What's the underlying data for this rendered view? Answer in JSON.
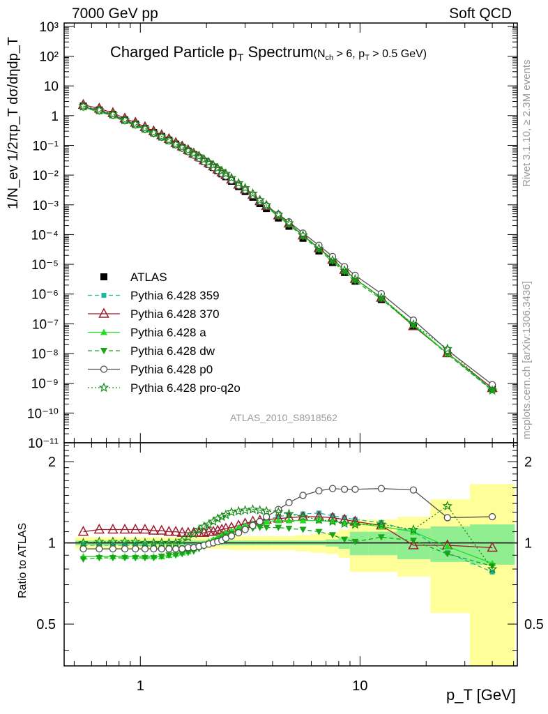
{
  "header": {
    "left": "7000 GeV pp",
    "right": "Soft QCD"
  },
  "title": {
    "main": "Charged Particle p",
    "main_sub": "T",
    "main_tail": " Spectrum",
    "cut": "(N",
    "cut_sub": "ch",
    "cut_mid": " > 6, p",
    "cut_sub2": "T",
    "cut_tail": " > 0.5 GeV)"
  },
  "analysis_label": "ATLAS_2010_S8918562",
  "side_labels": {
    "rivet": "Rivet 3.1.10, ≥ 2.3M events",
    "mcplots": "mcplots.cern.ch [arXiv:1306.3436]"
  },
  "axes": {
    "ylabel": "1/N_ev 1/2πp_T dσ/dηdp_T",
    "ratio_ylabel": "Ratio to ATLAS",
    "xlabel": "p_T  [GeV]",
    "x_ticks": [
      "1",
      "10"
    ],
    "y_ticks": [
      "10⁻¹¹",
      "10⁻¹⁰",
      "10⁻⁹",
      "10⁻⁸",
      "10⁻⁷",
      "10⁻⁶",
      "10⁻⁵",
      "10⁻⁴",
      "10⁻³",
      "10⁻²",
      "10⁻¹",
      "1",
      "10",
      "10²",
      "10³"
    ],
    "ratio_ticks": [
      "0.5",
      "1",
      "2"
    ]
  },
  "colors": {
    "ATLAS": "#000000",
    "359": "#1fb5a0",
    "370": "#9b1b2e",
    "a": "#22dd22",
    "dw": "#17a617",
    "p0": "#505050",
    "proq2o": "#168a16",
    "band_stat": "#90ee90",
    "band_total": "#ffff99"
  },
  "chart_data": {
    "type": "scatter",
    "x_scale": "log",
    "y_scale": "log",
    "xlim": [
      0.45,
      52
    ],
    "ylim": [
      1e-11,
      1300
    ],
    "ratio_ylim": [
      0.35,
      2.35
    ],
    "x": [
      0.55,
      0.65,
      0.75,
      0.85,
      0.95,
      1.05,
      1.15,
      1.25,
      1.35,
      1.45,
      1.55,
      1.65,
      1.75,
      1.85,
      1.95,
      2.05,
      2.15,
      2.25,
      2.35,
      2.45,
      2.6,
      2.8,
      3.0,
      3.25,
      3.5,
      3.75,
      4.25,
      4.75,
      5.5,
      6.5,
      7.5,
      8.5,
      9.5,
      12.5,
      17.5,
      25.0,
      40.0
    ],
    "atlas": [
      2.1,
      1.55,
      1.1,
      0.72,
      0.52,
      0.37,
      0.27,
      0.2,
      0.15,
      0.11,
      0.085,
      0.064,
      0.049,
      0.038,
      0.029,
      0.023,
      0.018,
      0.014,
      0.011,
      0.0088,
      0.0062,
      0.0041,
      0.0028,
      0.0018,
      0.0011,
      0.00075,
      0.00036,
      0.00019,
      7.5e-05,
      2.8e-05,
      1.15e-05,
      5.3e-06,
      2.7e-06,
      6.5e-07,
      8.5e-08,
      1.05e-08,
      7.2e-10
    ],
    "band_stat": [
      0.02,
      0.02,
      0.02,
      0.02,
      0.02,
      0.02,
      0.02,
      0.02,
      0.02,
      0.02,
      0.02,
      0.02,
      0.02,
      0.02,
      0.02,
      0.02,
      0.02,
      0.02,
      0.02,
      0.02,
      0.02,
      0.02,
      0.02,
      0.02,
      0.02,
      0.02,
      0.02,
      0.02,
      0.02,
      0.02,
      0.03,
      0.05,
      0.1,
      0.1,
      0.13,
      0.15,
      0.17
    ],
    "band_total": [
      0.05,
      0.05,
      0.05,
      0.05,
      0.05,
      0.05,
      0.05,
      0.05,
      0.05,
      0.05,
      0.05,
      0.05,
      0.05,
      0.05,
      0.05,
      0.05,
      0.05,
      0.05,
      0.05,
      0.05,
      0.06,
      0.06,
      0.06,
      0.06,
      0.06,
      0.06,
      0.06,
      0.06,
      0.07,
      0.08,
      0.09,
      0.12,
      0.22,
      0.22,
      0.25,
      0.45,
      0.65
    ],
    "series": [
      {
        "name": "ATLAS",
        "key": "ATLAS",
        "marker": "square",
        "line": "none",
        "ratio": [
          1,
          1,
          1,
          1,
          1,
          1,
          1,
          1,
          1,
          1,
          1,
          1,
          1,
          1,
          1,
          1,
          1,
          1,
          1,
          1,
          1,
          1,
          1,
          1,
          1,
          1,
          1,
          1,
          1,
          1,
          1,
          1,
          1,
          1,
          1,
          1,
          1
        ]
      },
      {
        "name": "Pythia 6.428 359",
        "key": "359",
        "marker": "square-small",
        "line": "dashed",
        "ratio": [
          0.98,
          0.98,
          0.98,
          0.98,
          0.98,
          0.98,
          0.97,
          0.96,
          0.96,
          0.96,
          0.96,
          0.96,
          0.97,
          0.98,
          0.99,
          1.0,
          1.02,
          1.03,
          1.05,
          1.06,
          1.09,
          1.12,
          1.15,
          1.18,
          1.2,
          1.22,
          1.25,
          1.27,
          1.28,
          1.29,
          1.26,
          1.24,
          1.22,
          1.19,
          1.1,
          0.92,
          0.78
        ]
      },
      {
        "name": "Pythia 6.428 370",
        "key": "370",
        "marker": "triangle-open",
        "line": "solid",
        "ratio": [
          1.1,
          1.12,
          1.12,
          1.12,
          1.12,
          1.12,
          1.11,
          1.11,
          1.1,
          1.1,
          1.09,
          1.09,
          1.09,
          1.09,
          1.09,
          1.1,
          1.1,
          1.11,
          1.12,
          1.13,
          1.14,
          1.16,
          1.18,
          1.2,
          1.21,
          1.22,
          1.23,
          1.24,
          1.25,
          1.25,
          1.24,
          1.22,
          1.2,
          1.16,
          0.98,
          0.98,
          0.96
        ]
      },
      {
        "name": "Pythia 6.428 a",
        "key": "a",
        "marker": "triangle",
        "line": "solid",
        "ratio": [
          0.89,
          0.89,
          0.89,
          0.89,
          0.89,
          0.89,
          0.89,
          0.89,
          0.9,
          0.91,
          0.92,
          0.93,
          0.95,
          0.97,
          0.99,
          1.01,
          1.03,
          1.05,
          1.07,
          1.09,
          1.11,
          1.14,
          1.16,
          1.18,
          1.19,
          1.2,
          1.21,
          1.21,
          1.21,
          1.21,
          1.2,
          1.19,
          1.18,
          1.15,
          1.1,
          0.97,
          0.84
        ]
      },
      {
        "name": "Pythia 6.428 dw",
        "key": "dw",
        "marker": "triangle-down",
        "line": "dashed",
        "ratio": [
          0.87,
          0.88,
          0.88,
          0.88,
          0.88,
          0.88,
          0.88,
          0.89,
          0.9,
          0.9,
          0.91,
          0.92,
          0.93,
          0.95,
          0.97,
          0.99,
          1.0,
          1.02,
          1.04,
          1.06,
          1.08,
          1.1,
          1.12,
          1.13,
          1.14,
          1.14,
          1.14,
          1.13,
          1.12,
          1.1,
          1.07,
          1.03,
          1.01,
          1.05,
          1.02,
          0.91,
          0.82
        ]
      },
      {
        "name": "Pythia 6.428 p0",
        "key": "p0",
        "marker": "circle-open",
        "line": "solid",
        "ratio": [
          0.95,
          0.95,
          0.95,
          0.95,
          0.95,
          0.95,
          0.95,
          0.95,
          0.95,
          0.95,
          0.95,
          0.96,
          0.96,
          0.97,
          0.98,
          0.99,
          1.0,
          1.01,
          1.02,
          1.04,
          1.06,
          1.09,
          1.12,
          1.16,
          1.2,
          1.25,
          1.33,
          1.41,
          1.5,
          1.56,
          1.59,
          1.58,
          1.58,
          1.59,
          1.57,
          1.24,
          1.25
        ]
      },
      {
        "name": "Pythia 6.428 pro-q2o",
        "key": "proq2o",
        "marker": "star",
        "line": "dotted",
        "ratio": [
          1.0,
          1.01,
          1.01,
          1.01,
          1.01,
          1.0,
          1.0,
          1.0,
          1.0,
          1.0,
          1.02,
          1.05,
          1.08,
          1.12,
          1.15,
          1.17,
          1.2,
          1.23,
          1.25,
          1.27,
          1.3,
          1.31,
          1.32,
          1.33,
          1.32,
          1.31,
          1.3,
          1.28,
          1.25,
          1.22,
          1.2,
          1.18,
          1.17,
          1.17,
          1.12,
          1.37,
          0.8
        ]
      }
    ]
  }
}
